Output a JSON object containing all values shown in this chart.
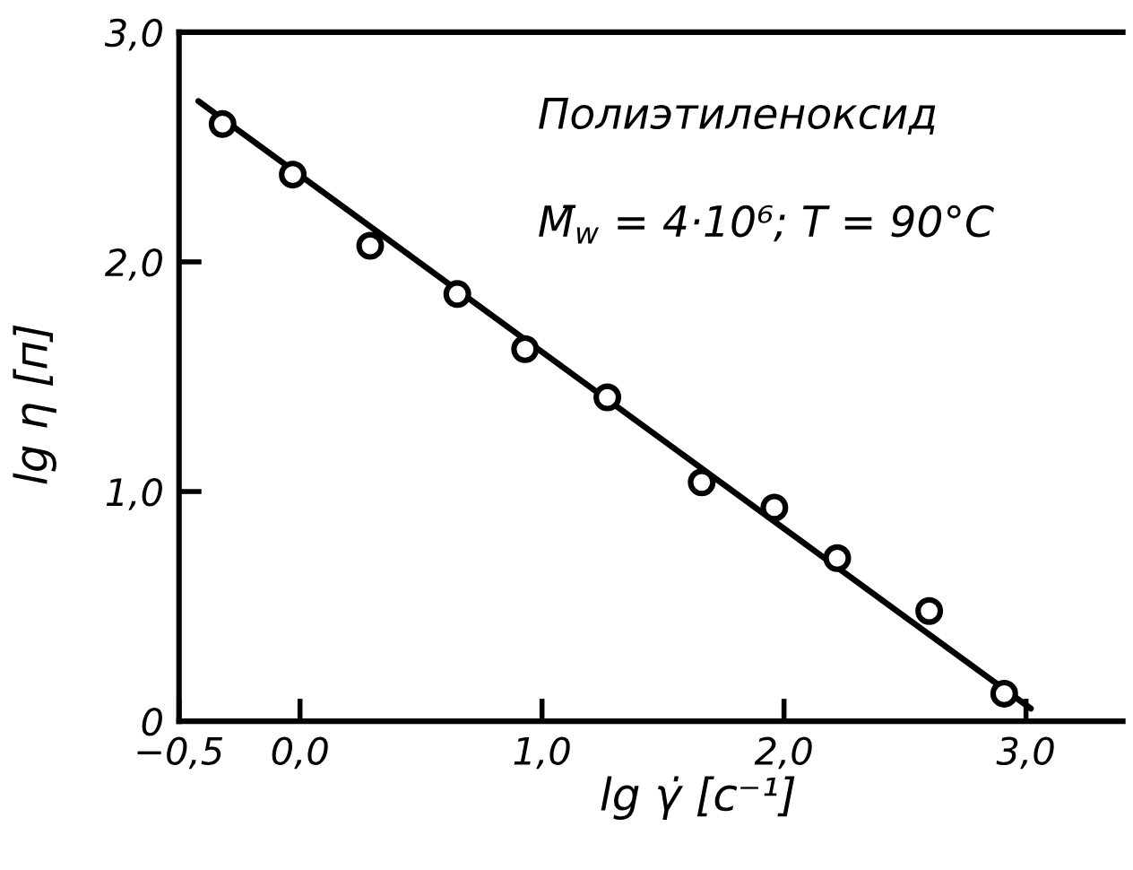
{
  "chart_data": {
    "type": "scatter",
    "xlabel": "lg γ̇ [с⁻¹]",
    "ylabel": "lg η [п]",
    "annotations": [
      "Полиэтиленоксид",
      "M̄$_{w}$ = 4·10⁶; T = 90°C"
    ],
    "series": [
      {
        "color": "#000000",
        "marker": "circle",
        "x": [
          -0.32,
          -0.03,
          0.29,
          0.65,
          0.93,
          1.27,
          1.66,
          1.96,
          2.22,
          2.6,
          2.91
        ],
        "values": [
          2.6,
          2.38,
          2.07,
          1.86,
          1.62,
          1.41,
          1.04,
          0.93,
          0.71,
          0.48,
          0.12
        ]
      },
      {
        "type": "line",
        "color": "#000000",
        "line_style": "solid",
        "x": [
          -0.42,
          3.02
        ],
        "values": [
          2.7,
          0.055
        ]
      }
    ],
    "xlim": [
      -0.5,
      3.4
    ],
    "ylim": [
      0,
      3.0
    ],
    "xticks": [
      {
        "value": -0.5,
        "label": "−0,5"
      },
      {
        "value": 0,
        "label": "0,0"
      },
      {
        "value": 1,
        "label": "1,0"
      },
      {
        "value": 2,
        "label": "2,0"
      },
      {
        "value": 3,
        "label": "3,0"
      }
    ],
    "yticks": [
      0,
      {
        "value": 1,
        "label": "1,0"
      },
      {
        "value": 2,
        "label": "2,0"
      },
      {
        "value": 3,
        "label": "3,0"
      }
    ]
  }
}
